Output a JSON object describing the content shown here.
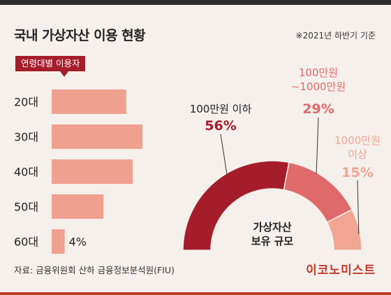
{
  "header": {
    "title": "국내 가상자산 이용 현황",
    "note": "※2021년 하반기 기준"
  },
  "footer": {
    "source": "자료: 금융위원회 산하 금융정보분석원(FIU)",
    "brand": "이코노미스트"
  },
  "colors": {
    "bar": "#f0a08e",
    "legend_tag": "#a51c2a",
    "slice_1": "#a51c2a",
    "slice_2": "#e06a6a",
    "slice_3": "#f2a592",
    "brand": "#c0392b"
  },
  "chart_data": [
    {
      "type": "bar",
      "orientation": "horizontal",
      "title": "연령대별 이용자",
      "categories": [
        "20대",
        "30대",
        "40대",
        "50대",
        "60대"
      ],
      "values": [
        23,
        28,
        25,
        16,
        4
      ],
      "xlim": [
        0,
        28
      ],
      "data_labels": [
        "",
        "",
        "",
        "",
        "4%"
      ],
      "grid": false
    },
    {
      "type": "pie",
      "style": "half-donut",
      "title": "가상자산\n보유 규모",
      "categories": [
        "100만원 이하",
        "100만원\n~1000만원",
        "1000만원\n이상"
      ],
      "values": [
        56,
        29,
        15
      ],
      "value_labels": [
        "56%",
        "29%",
        "15%"
      ]
    }
  ]
}
